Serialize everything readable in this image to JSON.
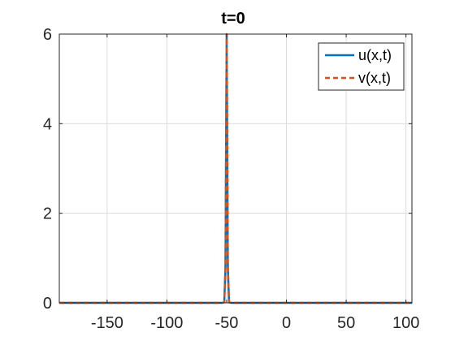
{
  "chart_data": {
    "type": "line",
    "title": "t=0",
    "xlabel": "",
    "ylabel": "",
    "xlim": [
      -190,
      105
    ],
    "ylim": [
      0,
      6
    ],
    "xticks": [
      -150,
      -100,
      -50,
      0,
      50,
      100
    ],
    "xtick_labels": [
      "-150",
      "-100",
      "-50",
      "0",
      "50",
      "100"
    ],
    "yticks": [
      0,
      2,
      4,
      6
    ],
    "ytick_labels": [
      "0",
      "2",
      "4",
      "6"
    ],
    "grid": true,
    "legend_position": "top-right",
    "series": [
      {
        "name": "u(x,t)",
        "color": "#0072BD",
        "style": "solid",
        "x": [
          -190,
          -60,
          -54,
          -52,
          -51,
          -50.5,
          -50,
          -49.5,
          -49,
          -48,
          -46,
          -40,
          105
        ],
        "y": [
          0,
          0,
          0,
          0.01,
          0.8,
          3.5,
          6.0,
          3.5,
          0.8,
          0.01,
          0,
          0,
          0
        ]
      },
      {
        "name": "v(x,t)",
        "color": "#D95319",
        "style": "dashed",
        "x": [
          -190,
          -60,
          -54,
          -52,
          -51,
          -50.5,
          -50,
          -49.5,
          -49,
          -48,
          -46,
          -40,
          105
        ],
        "y": [
          0,
          0,
          0,
          0.01,
          0.8,
          3.5,
          6.0,
          3.5,
          0.8,
          0.01,
          0,
          0,
          0
        ]
      }
    ]
  }
}
